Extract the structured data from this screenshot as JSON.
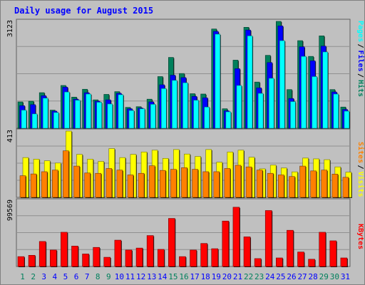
{
  "title": "Daily usage for August 2015",
  "colors": {
    "background": "#c0c0c0",
    "panel": "#c0c0c0",
    "title_text": "#0000ff",
    "hits": "#00805c",
    "files": "#0000ff",
    "pages": "#00ffff",
    "visits": "#ffff00",
    "sites": "#ff8000",
    "kbytes": "#ff0000",
    "weekend_label": "#00805c",
    "weekday_label": "#0000ff"
  },
  "chart_data": [
    {
      "type": "bar",
      "panel": "hits-files-pages",
      "max_label": "3123",
      "ylim": [
        0,
        3123
      ],
      "categories": [
        "1",
        "2",
        "3",
        "4",
        "5",
        "6",
        "7",
        "8",
        "9",
        "10",
        "11",
        "12",
        "13",
        "14",
        "15",
        "16",
        "17",
        "18",
        "19",
        "20",
        "21",
        "22",
        "23",
        "24",
        "25",
        "26",
        "27",
        "28",
        "29",
        "30",
        "31"
      ],
      "weekend_days": [
        1,
        2,
        8,
        9,
        15,
        16,
        22,
        23,
        29,
        30
      ],
      "legend": [
        {
          "label": "Hits",
          "key": "hits"
        },
        {
          "label": "Files",
          "key": "files"
        },
        {
          "label": "Pages",
          "key": "pages"
        }
      ],
      "series": [
        {
          "name": "Hits",
          "values": [
            770,
            790,
            1040,
            530,
            1250,
            910,
            1140,
            830,
            990,
            1070,
            610,
            630,
            850,
            1510,
            2070,
            1600,
            1010,
            1000,
            2900,
            570,
            1990,
            2950,
            1350,
            2130,
            3123,
            1130,
            2560,
            2100,
            2700,
            1130,
            620
          ]
        },
        {
          "name": "Files",
          "values": [
            660,
            690,
            950,
            500,
            1200,
            850,
            1040,
            790,
            830,
            1020,
            570,
            590,
            770,
            1270,
            1550,
            1480,
            930,
            890,
            2830,
            510,
            1740,
            2870,
            1180,
            1920,
            2990,
            870,
            2380,
            1970,
            2400,
            1060,
            550
          ]
        },
        {
          "name": "Pages",
          "values": [
            530,
            420,
            880,
            460,
            1060,
            820,
            1000,
            760,
            710,
            980,
            520,
            570,
            700,
            1160,
            1400,
            1330,
            820,
            620,
            2750,
            480,
            1250,
            2700,
            1020,
            1460,
            2560,
            780,
            2100,
            1510,
            2230,
            1000,
            500
          ]
        }
      ]
    },
    {
      "type": "bar",
      "panel": "visits-sites",
      "max_label": "413",
      "ylim": [
        0,
        413
      ],
      "categories": [
        "1",
        "2",
        "3",
        "4",
        "5",
        "6",
        "7",
        "8",
        "9",
        "10",
        "11",
        "12",
        "13",
        "14",
        "15",
        "16",
        "17",
        "18",
        "19",
        "20",
        "21",
        "22",
        "23",
        "24",
        "25",
        "26",
        "27",
        "28",
        "29",
        "30",
        "31"
      ],
      "legend": [
        {
          "label": "Visits",
          "key": "visits"
        },
        {
          "label": "Sites",
          "key": "sites"
        }
      ],
      "series": [
        {
          "name": "Visits",
          "values": [
            248,
            238,
            228,
            214,
            413,
            268,
            238,
            224,
            304,
            248,
            268,
            283,
            294,
            243,
            298,
            270,
            255,
            298,
            219,
            283,
            294,
            250,
            178,
            201,
            183,
            159,
            245,
            240,
            235,
            190,
            157
          ]
        },
        {
          "name": "Sites",
          "values": [
            135,
            146,
            160,
            170,
            290,
            195,
            152,
            150,
            180,
            170,
            140,
            150,
            197,
            168,
            175,
            185,
            175,
            160,
            160,
            180,
            200,
            190,
            170,
            150,
            140,
            130,
            195,
            165,
            170,
            145,
            125
          ]
        }
      ]
    },
    {
      "type": "bar",
      "panel": "kbytes",
      "max_label": "99569",
      "ylim": [
        0,
        99569
      ],
      "categories": [
        "1",
        "2",
        "3",
        "4",
        "5",
        "6",
        "7",
        "8",
        "9",
        "10",
        "11",
        "12",
        "13",
        "14",
        "15",
        "16",
        "17",
        "18",
        "19",
        "20",
        "21",
        "22",
        "23",
        "24",
        "25",
        "26",
        "27",
        "28",
        "29",
        "30",
        "31"
      ],
      "legend": [
        {
          "label": "KBytes",
          "key": "kbytes"
        }
      ],
      "series": [
        {
          "name": "KBytes",
          "values": [
            15000,
            17000,
            38000,
            25000,
            52000,
            31000,
            19000,
            29000,
            14000,
            40000,
            25000,
            28000,
            47000,
            26000,
            73000,
            15000,
            25000,
            35000,
            27000,
            69000,
            90000,
            45000,
            12000,
            85000,
            13000,
            55000,
            22000,
            11000,
            52000,
            39000,
            13000
          ]
        }
      ]
    }
  ]
}
